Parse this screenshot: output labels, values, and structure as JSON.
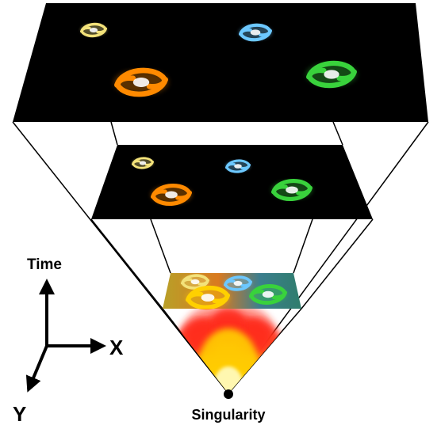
{
  "labels": {
    "time": "Time",
    "x": "X",
    "y": "Y",
    "singularity": "Singularity"
  },
  "colors": {
    "galaxy_yellow": "#f3e27a",
    "galaxy_blue": "#6cc8ff",
    "galaxy_orange": "#ff8a00",
    "galaxy_green": "#39d23c",
    "plane": "#000000",
    "glow_core": "#fff7b0",
    "glow_mid": "#ffcc00",
    "glow_outer": "#ff2a1a"
  },
  "icons": [
    "spiral-galaxy-icon",
    "axis-arrow-icon",
    "singularity-dot-icon"
  ]
}
